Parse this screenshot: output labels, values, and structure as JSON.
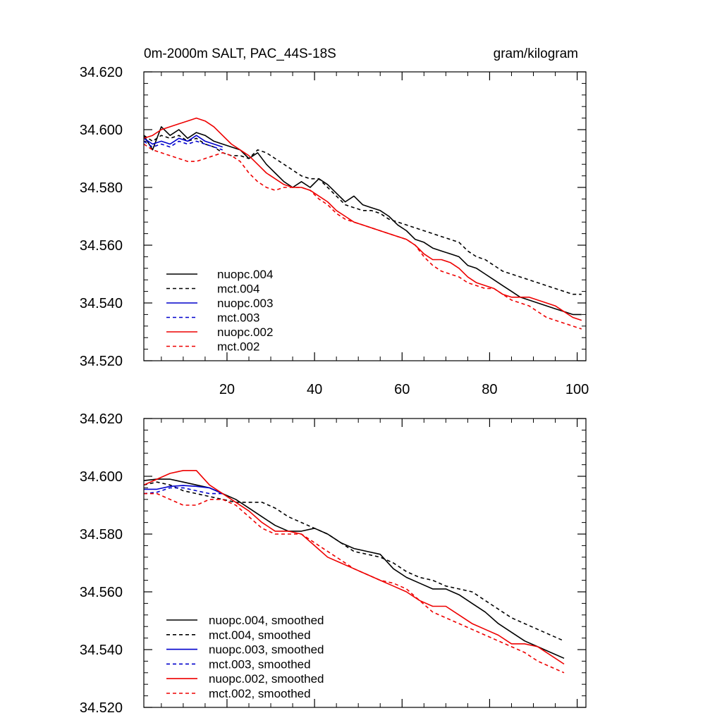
{
  "page_title": "0m-2000m SALT, PAC_44S-18S",
  "chart_data": [
    {
      "type": "line",
      "title_left": "0m-2000m SALT, PAC_44S-18S",
      "title_right": "gram/kilogram",
      "xlabel": "",
      "ylabel": "",
      "xlim": [
        1,
        102
      ],
      "ylim": [
        34.52,
        34.62
      ],
      "xticks": [
        20,
        40,
        60,
        80,
        100
      ],
      "yticks": [
        "34.520",
        "34.540",
        "34.560",
        "34.580",
        "34.600",
        "34.620"
      ],
      "legend_position": "bottom-left",
      "series": [
        {
          "name": "nuopc.004",
          "color": "#000000",
          "dash": false,
          "x": [
            1,
            3,
            5,
            7,
            9,
            11,
            13,
            15,
            17,
            19,
            21,
            23,
            25,
            27,
            29,
            31,
            33,
            35,
            37,
            39,
            41,
            43,
            45,
            47,
            49,
            51,
            53,
            55,
            57,
            59,
            61,
            63,
            65,
            67,
            69,
            71,
            73,
            75,
            77,
            79,
            81,
            83,
            85,
            87,
            89,
            91,
            93,
            95,
            97,
            99,
            101
          ],
          "y": [
            34.598,
            34.593,
            34.601,
            34.598,
            34.6,
            34.597,
            34.599,
            34.598,
            34.596,
            34.595,
            34.594,
            34.593,
            34.59,
            34.592,
            34.588,
            34.585,
            34.582,
            34.58,
            34.582,
            34.58,
            34.583,
            34.581,
            34.578,
            34.575,
            34.577,
            34.574,
            34.573,
            34.572,
            34.57,
            34.567,
            34.565,
            34.562,
            34.561,
            34.559,
            34.558,
            34.557,
            34.556,
            34.553,
            34.552,
            34.55,
            34.548,
            34.546,
            34.544,
            34.542,
            34.541,
            34.54,
            34.539,
            34.538,
            34.537,
            34.536,
            34.536
          ]
        },
        {
          "name": "mct.004",
          "color": "#000000",
          "dash": true,
          "x": [
            1,
            3,
            5,
            7,
            9,
            11,
            13,
            15,
            17,
            19,
            21,
            23,
            25,
            27,
            29,
            31,
            33,
            35,
            37,
            39,
            41,
            43,
            45,
            47,
            49,
            51,
            53,
            55,
            57,
            59,
            61,
            63,
            65,
            67,
            69,
            71,
            73,
            75,
            77,
            79,
            81,
            83,
            85,
            87,
            89,
            91,
            93,
            95,
            97,
            99,
            101
          ],
          "y": [
            34.598,
            34.596,
            34.598,
            34.597,
            34.598,
            34.596,
            34.597,
            34.595,
            34.594,
            34.592,
            34.591,
            34.591,
            34.59,
            34.593,
            34.592,
            34.59,
            34.588,
            34.586,
            34.584,
            34.583,
            34.583,
            34.58,
            34.577,
            34.574,
            34.573,
            34.572,
            34.572,
            34.571,
            34.569,
            34.568,
            34.567,
            34.566,
            34.565,
            34.564,
            34.563,
            34.562,
            34.561,
            34.558,
            34.556,
            34.555,
            34.553,
            34.551,
            34.55,
            34.549,
            34.548,
            34.547,
            34.546,
            34.545,
            34.544,
            34.543,
            34.543
          ]
        },
        {
          "name": "nuopc.003",
          "color": "#0000cc",
          "dash": false,
          "x": [
            1,
            3,
            5,
            7,
            9,
            11,
            13,
            15,
            17,
            19
          ],
          "y": [
            34.597,
            34.595,
            34.596,
            34.595,
            34.597,
            34.596,
            34.598,
            34.596,
            34.595,
            34.594
          ]
        },
        {
          "name": "mct.003",
          "color": "#0000cc",
          "dash": true,
          "x": [
            1,
            3,
            5,
            7,
            9,
            11,
            13,
            15,
            17,
            19
          ],
          "y": [
            34.596,
            34.594,
            34.595,
            34.594,
            34.596,
            34.595,
            34.596,
            34.595,
            34.594,
            34.593
          ]
        },
        {
          "name": "nuopc.002",
          "color": "#ee0000",
          "dash": false,
          "x": [
            1,
            3,
            5,
            7,
            9,
            11,
            13,
            15,
            17,
            19,
            21,
            23,
            25,
            27,
            29,
            31,
            33,
            35,
            37,
            39,
            41,
            43,
            45,
            47,
            49,
            51,
            53,
            55,
            57,
            59,
            61,
            63,
            65,
            67,
            69,
            71,
            73,
            75,
            77,
            79,
            81,
            83,
            85,
            87,
            89,
            91,
            93,
            95,
            97,
            99,
            101
          ],
          "y": [
            34.597,
            34.598,
            34.6,
            34.601,
            34.602,
            34.603,
            34.604,
            34.603,
            34.601,
            34.598,
            34.595,
            34.593,
            34.591,
            34.588,
            34.585,
            34.583,
            34.581,
            34.58,
            34.58,
            34.579,
            34.577,
            34.575,
            34.572,
            34.57,
            34.568,
            34.567,
            34.566,
            34.565,
            34.564,
            34.563,
            34.562,
            34.56,
            34.557,
            34.555,
            34.555,
            34.554,
            34.552,
            34.549,
            34.547,
            34.546,
            34.545,
            34.543,
            34.542,
            34.542,
            34.542,
            34.541,
            34.54,
            34.539,
            34.537,
            34.535,
            34.534
          ]
        },
        {
          "name": "mct.002",
          "color": "#ee0000",
          "dash": true,
          "x": [
            1,
            3,
            5,
            7,
            9,
            11,
            13,
            15,
            17,
            19,
            21,
            23,
            25,
            27,
            29,
            31,
            33,
            35,
            37,
            39,
            41,
            43,
            45,
            47,
            49,
            51,
            53,
            55,
            57,
            59,
            61,
            63,
            65,
            67,
            69,
            71,
            73,
            75,
            77,
            79,
            81,
            83,
            85,
            87,
            89,
            91,
            93,
            95,
            97,
            99,
            101
          ],
          "y": [
            34.595,
            34.593,
            34.592,
            34.591,
            34.59,
            34.589,
            34.589,
            34.59,
            34.591,
            34.592,
            34.591,
            34.589,
            34.585,
            34.582,
            34.58,
            34.579,
            34.58,
            34.58,
            34.58,
            34.579,
            34.576,
            34.574,
            34.571,
            34.569,
            34.568,
            34.567,
            34.566,
            34.565,
            34.564,
            34.563,
            34.562,
            34.56,
            34.556,
            34.553,
            34.551,
            34.55,
            34.549,
            34.547,
            34.546,
            34.545,
            34.545,
            34.543,
            34.541,
            34.54,
            34.539,
            34.537,
            34.535,
            34.534,
            34.533,
            34.532,
            34.531
          ]
        }
      ]
    },
    {
      "type": "line",
      "title_left": "",
      "title_right": "",
      "xlabel": "",
      "ylabel": "",
      "xlim": [
        1,
        102
      ],
      "ylim": [
        34.52,
        34.62
      ],
      "xticks": [
        20,
        40,
        60,
        80,
        100
      ],
      "yticks": [
        "34.520",
        "34.540",
        "34.560",
        "34.580",
        "34.600",
        "34.620"
      ],
      "legend_position": "bottom-left",
      "series": [
        {
          "name": "nuopc.004, smoothed",
          "color": "#000000",
          "dash": false,
          "x": [
            1,
            4,
            7,
            10,
            13,
            16,
            19,
            22,
            25,
            28,
            31,
            34,
            37,
            40,
            43,
            46,
            49,
            52,
            55,
            58,
            61,
            64,
            67,
            70,
            73,
            76,
            79,
            82,
            85,
            88,
            91,
            94,
            97
          ],
          "y": [
            34.5985,
            34.599,
            34.599,
            34.598,
            34.597,
            34.596,
            34.594,
            34.592,
            34.589,
            34.586,
            34.583,
            34.581,
            34.581,
            34.582,
            34.58,
            34.577,
            34.575,
            34.574,
            34.573,
            34.568,
            34.565,
            34.563,
            34.561,
            34.561,
            34.559,
            34.556,
            34.553,
            34.549,
            34.546,
            34.543,
            34.541,
            34.539,
            34.537
          ]
        },
        {
          "name": "mct.004, smoothed",
          "color": "#000000",
          "dash": true,
          "x": [
            1,
            4,
            7,
            10,
            13,
            16,
            19,
            22,
            25,
            28,
            31,
            34,
            37,
            40,
            43,
            46,
            49,
            52,
            55,
            58,
            61,
            64,
            67,
            70,
            73,
            76,
            79,
            82,
            85,
            88,
            91,
            94,
            97
          ],
          "y": [
            34.597,
            34.598,
            34.597,
            34.595,
            34.594,
            34.593,
            34.592,
            34.591,
            34.591,
            34.591,
            34.589,
            34.586,
            34.584,
            34.582,
            34.58,
            34.577,
            34.574,
            34.573,
            34.572,
            34.57,
            34.567,
            34.565,
            34.564,
            34.562,
            34.561,
            34.56,
            34.557,
            34.554,
            34.551,
            34.549,
            34.547,
            34.545,
            34.543
          ]
        },
        {
          "name": "nuopc.003, smoothed",
          "color": "#0000cc",
          "dash": false,
          "x": [
            1,
            4,
            7,
            10,
            13,
            16,
            19
          ],
          "y": [
            34.5955,
            34.5955,
            34.5965,
            34.5968,
            34.5965,
            34.596,
            34.594
          ]
        },
        {
          "name": "mct.003, smoothed",
          "color": "#0000cc",
          "dash": true,
          "x": [
            1,
            4,
            7,
            10,
            13,
            16,
            19
          ],
          "y": [
            34.594,
            34.5945,
            34.596,
            34.596,
            34.595,
            34.594,
            34.594
          ]
        },
        {
          "name": "nuopc.002, smoothed",
          "color": "#ee0000",
          "dash": false,
          "x": [
            1,
            4,
            7,
            10,
            13,
            16,
            19,
            22,
            25,
            28,
            31,
            34,
            37,
            40,
            43,
            46,
            49,
            52,
            55,
            58,
            61,
            64,
            67,
            70,
            73,
            76,
            79,
            82,
            85,
            88,
            91,
            94,
            97
          ],
          "y": [
            34.597,
            34.599,
            34.601,
            34.602,
            34.602,
            34.597,
            34.594,
            34.591,
            34.588,
            34.584,
            34.581,
            34.581,
            34.58,
            34.576,
            34.572,
            34.57,
            34.568,
            34.566,
            34.564,
            34.562,
            34.56,
            34.557,
            34.555,
            34.555,
            34.552,
            34.549,
            34.547,
            34.545,
            34.542,
            34.542,
            34.541,
            34.538,
            34.535
          ]
        },
        {
          "name": "mct.002, smoothed",
          "color": "#ee0000",
          "dash": true,
          "x": [
            1,
            4,
            7,
            10,
            13,
            16,
            19,
            22,
            25,
            28,
            31,
            34,
            37,
            40,
            43,
            46,
            49,
            52,
            55,
            58,
            61,
            64,
            67,
            70,
            73,
            76,
            79,
            82,
            85,
            88,
            91,
            94,
            97
          ],
          "y": [
            34.594,
            34.594,
            34.592,
            34.59,
            34.59,
            34.592,
            34.592,
            34.59,
            34.586,
            34.582,
            34.58,
            34.58,
            34.58,
            34.577,
            34.574,
            34.571,
            34.568,
            34.566,
            34.564,
            34.563,
            34.561,
            34.557,
            34.553,
            34.551,
            34.549,
            34.547,
            34.545,
            34.543,
            34.541,
            34.539,
            34.536,
            34.534,
            34.532
          ]
        }
      ]
    }
  ]
}
